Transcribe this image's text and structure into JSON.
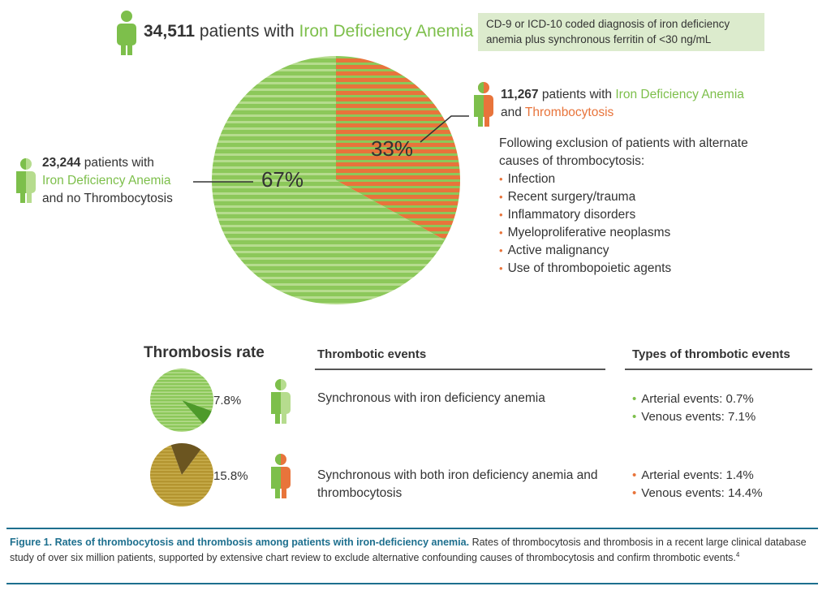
{
  "colors": {
    "ida_green": "#7dbf4b",
    "thrombocytosis_orange": "#e8743b",
    "caption_blue": "#1d6f8e",
    "note_background": "#dcebcd"
  },
  "icons": [
    "person-green-icon",
    "person-green-split-icon",
    "person-orange-green-icon"
  ],
  "header": {
    "count": "34,511",
    "text_before": "patients with",
    "condition": "Iron Deficiency Anemia",
    "note": "CD-9 or ICD-10 coded diagnosis of iron deficiency anemia plus synchronous ferritin of <30 ng/mL"
  },
  "left_group": {
    "count": "23,244",
    "line1_rest": "patients with",
    "condition": "Iron Deficiency Anemia",
    "line3": "and no Thrombocytosis"
  },
  "right_group": {
    "count": "11,267",
    "text_mid": "patients with",
    "condition": "Iron Deficiency Anemia",
    "and": "and",
    "condition2": "Thrombocytosis"
  },
  "exclusion": {
    "intro": "Following exclusion of patients with alternate causes of thrombocytosis:",
    "items": [
      "Infection",
      "Recent surgery/trauma",
      "Inflammatory disorders",
      "Myeloproliferative neoplasms",
      "Active malignancy",
      "Use of thrombopoietic agents"
    ]
  },
  "chart_data": [
    {
      "type": "pie",
      "slices": [
        {
          "label": "67%",
          "value": 67,
          "group": "no thrombocytosis",
          "color": "#7dbf4b"
        },
        {
          "label": "33%",
          "value": 33,
          "group": "thrombocytosis",
          "color": "#e8743b"
        }
      ]
    },
    {
      "type": "pie",
      "title": "Thrombosis rate",
      "slices": [
        {
          "label": "7.8%",
          "value": 7.8,
          "color": "#4e9a2a"
        },
        {
          "label": "",
          "value": 92.2,
          "color": "#8cc85a"
        }
      ]
    },
    {
      "type": "pie",
      "slices": [
        {
          "label": "15.8%",
          "value": 15.8,
          "color": "#6b5520"
        },
        {
          "label": "",
          "value": 84.2,
          "color": "#b49530"
        }
      ]
    }
  ],
  "thrombosis": {
    "title": "Thrombosis rate",
    "header_events": "Thrombotic events",
    "header_types": "Types of thrombotic events",
    "rows": [
      {
        "rate": "7.8%",
        "event": "Synchronous with iron deficiency anemia",
        "types": [
          "Arterial events: 0.7%",
          "Venous events: 7.1%"
        ]
      },
      {
        "rate": "15.8%",
        "event": "Synchronous with both iron deficiency anemia and thrombocytosis",
        "types": [
          "Arterial events: 1.4%",
          "Venous events: 14.4%"
        ]
      }
    ]
  },
  "caption": {
    "title": "Figure 1. Rates of thrombocytosis and thrombosis among patients with iron-deficiency anemia.",
    "body": "Rates of thrombocytosis and thrombosis in a recent large clinical database study of over six million patients, supported by extensive chart review to exclude alternative confounding causes of thrombocytosis and confirm thrombotic events.",
    "ref": "4"
  }
}
